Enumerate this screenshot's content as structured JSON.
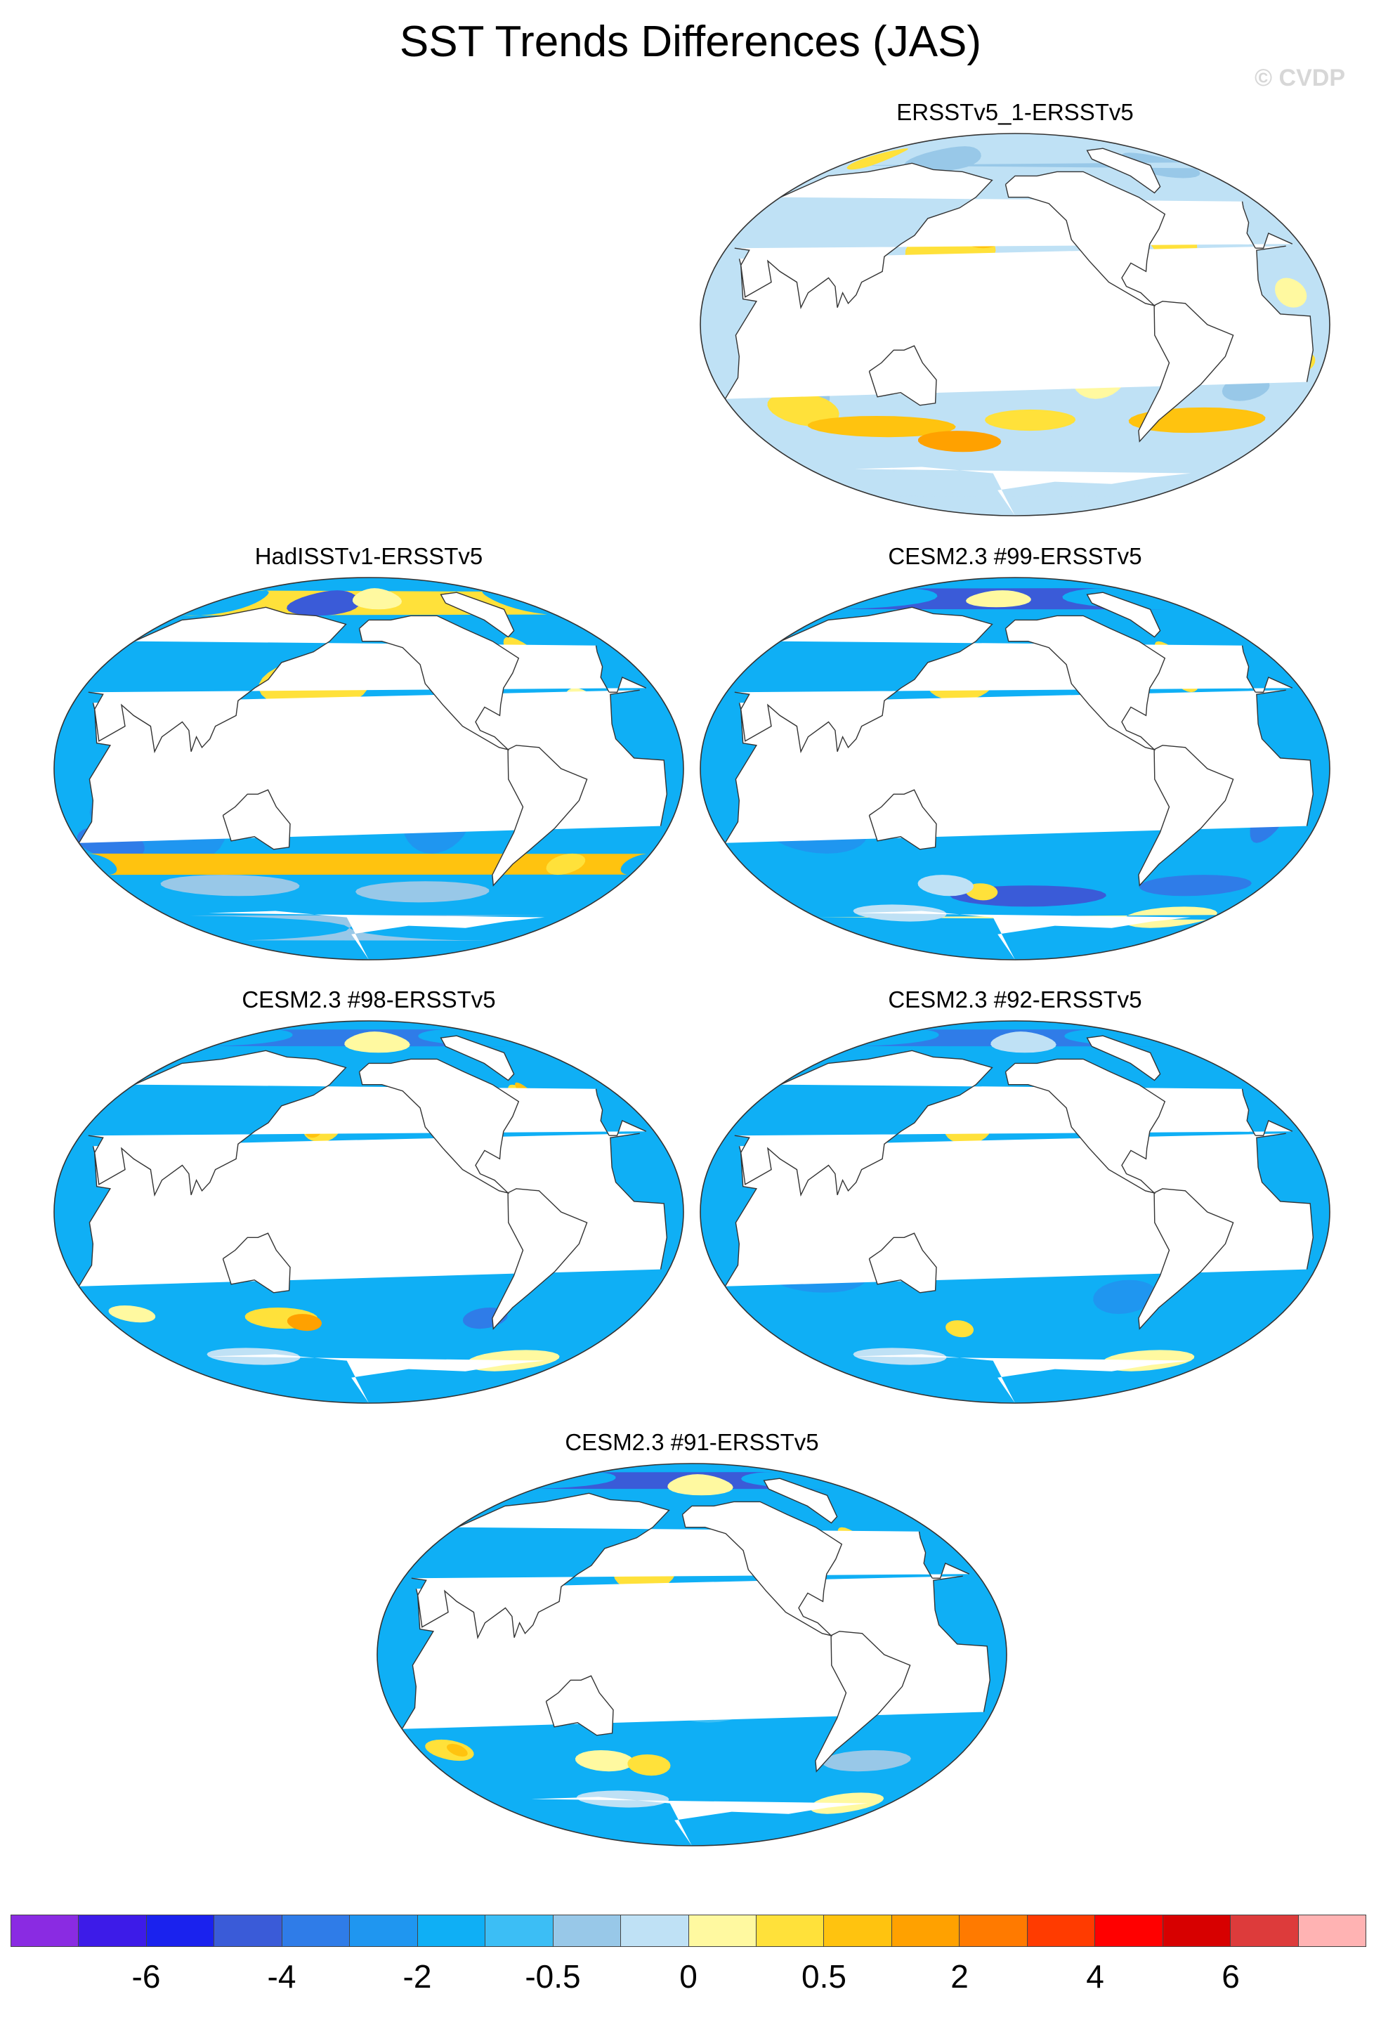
{
  "title": "SST Trends Differences (JAS)",
  "watermark": "© CVDP",
  "panels": [
    {
      "title": "ERSSTv5_1-ERSSTv5",
      "features": [
        {
          "lon": 0,
          "lat": 15,
          "rx": 9,
          "ry": 7,
          "c": 10
        },
        {
          "lon": 8,
          "lat": -18,
          "rx": 7,
          "ry": 5,
          "c": 11
        },
        {
          "lon": 72,
          "lat": -32,
          "rx": 14,
          "ry": 8,
          "c": 8
        },
        {
          "lon": 65,
          "lat": -40,
          "rx": 22,
          "ry": 8,
          "c": 11
        },
        {
          "lon": 100,
          "lat": 10,
          "rx": 15,
          "ry": 8,
          "c": 10
        },
        {
          "lon": 160,
          "lat": 35,
          "rx": 28,
          "ry": 12,
          "c": 11
        },
        {
          "lon": 180,
          "lat": 42,
          "rx": 14,
          "ry": 6,
          "c": 12
        },
        {
          "lon": -160,
          "lat": 20,
          "rx": 20,
          "ry": 10,
          "c": 10
        },
        {
          "lon": -150,
          "lat": -10,
          "rx": 12,
          "ry": 15,
          "c": 9
        },
        {
          "lon": -130,
          "lat": 5,
          "rx": 14,
          "ry": 6,
          "c": 8
        },
        {
          "lon": -110,
          "lat": -25,
          "rx": 16,
          "ry": 10,
          "c": 10
        },
        {
          "lon": -60,
          "lat": 40,
          "rx": 15,
          "ry": 10,
          "c": 11
        },
        {
          "lon": -30,
          "lat": 0,
          "rx": 12,
          "ry": 15,
          "c": 10
        },
        {
          "lon": -20,
          "lat": -30,
          "rx": 14,
          "ry": 6,
          "c": 8
        },
        {
          "lon": -40,
          "lat": -45,
          "rx": 45,
          "ry": 6,
          "c": 12
        },
        {
          "lon": 110,
          "lat": -48,
          "rx": 50,
          "ry": 5,
          "c": 12
        },
        {
          "lon": -150,
          "lat": -45,
          "rx": 30,
          "ry": 5,
          "c": 11
        },
        {
          "lon": 160,
          "lat": -55,
          "rx": 30,
          "ry": 5,
          "c": 13
        },
        {
          "lon": -10,
          "lat": 75,
          "rx": 30,
          "ry": 6,
          "c": 8
        },
        {
          "lon": 120,
          "lat": 78,
          "rx": 40,
          "ry": 6,
          "c": 8
        },
        {
          "lon": 40,
          "lat": 78,
          "rx": 15,
          "ry": 5,
          "c": 11
        },
        {
          "lon": 0,
          "lat": -75,
          "rx": 180,
          "ry": 6,
          "c": 9
        }
      ]
    },
    {
      "title": "HadISSTv1-ERSSTv5",
      "features": [
        {
          "lon": 75,
          "lat": -25,
          "rx": 40,
          "ry": 20,
          "c": 5
        },
        {
          "lon": 40,
          "lat": -35,
          "rx": 20,
          "ry": 8,
          "c": 4
        },
        {
          "lon": 165,
          "lat": 40,
          "rx": 35,
          "ry": 12,
          "c": 11
        },
        {
          "lon": 180,
          "lat": 45,
          "rx": 15,
          "ry": 6,
          "c": 12
        },
        {
          "lon": 150,
          "lat": -20,
          "rx": 14,
          "ry": 10,
          "c": 9
        },
        {
          "lon": 140,
          "lat": -30,
          "rx": 8,
          "ry": 6,
          "c": 10
        },
        {
          "lon": -150,
          "lat": 15,
          "rx": 30,
          "ry": 8,
          "c": 7
        },
        {
          "lon": -120,
          "lat": -25,
          "rx": 20,
          "ry": 15,
          "c": 5
        },
        {
          "lon": -50,
          "lat": 50,
          "rx": 12,
          "ry": 12,
          "c": 11
        },
        {
          "lon": -35,
          "lat": 45,
          "rx": 8,
          "ry": 6,
          "c": 12
        },
        {
          "lon": -30,
          "lat": 30,
          "rx": 10,
          "ry": 8,
          "c": 10
        },
        {
          "lon": -15,
          "lat": 0,
          "rx": 15,
          "ry": 10,
          "c": 6
        },
        {
          "lon": 20,
          "lat": -45,
          "rx": 12,
          "ry": 5,
          "c": 12
        },
        {
          "lon": -30,
          "lat": -45,
          "rx": 12,
          "ry": 5,
          "c": 11
        },
        {
          "lon": 100,
          "lat": -55,
          "rx": 50,
          "ry": 5,
          "c": 8
        },
        {
          "lon": -120,
          "lat": -58,
          "rx": 50,
          "ry": 5,
          "c": 8
        },
        {
          "lon": 30,
          "lat": 78,
          "rx": 40,
          "ry": 6,
          "c": 11
        },
        {
          "lon": 150,
          "lat": 78,
          "rx": 40,
          "ry": 6,
          "c": 3
        },
        {
          "lon": -150,
          "lat": 80,
          "rx": 30,
          "ry": 5,
          "c": 10
        },
        {
          "lon": 0,
          "lat": -75,
          "rx": 180,
          "ry": 6,
          "c": 8
        }
      ]
    },
    {
      "title": "CESM2.3 #99-ERSSTv5",
      "features": [
        {
          "lon": 165,
          "lat": 42,
          "rx": 22,
          "ry": 10,
          "c": 11
        },
        {
          "lon": 170,
          "lat": 45,
          "rx": 12,
          "ry": 5,
          "c": 13
        },
        {
          "lon": -50,
          "lat": 48,
          "rx": 10,
          "ry": 12,
          "c": 11
        },
        {
          "lon": -45,
          "lat": 52,
          "rx": 5,
          "ry": 6,
          "c": 12
        },
        {
          "lon": 80,
          "lat": -30,
          "rx": 30,
          "ry": 10,
          "c": 5
        },
        {
          "lon": -140,
          "lat": -15,
          "rx": 25,
          "ry": 12,
          "c": 5
        },
        {
          "lon": -10,
          "lat": -20,
          "rx": 10,
          "ry": 15,
          "c": 4
        },
        {
          "lon": -150,
          "lat": -60,
          "rx": 60,
          "ry": 5,
          "c": 3
        },
        {
          "lon": 175,
          "lat": -58,
          "rx": 12,
          "ry": 4,
          "c": 11
        },
        {
          "lon": 150,
          "lat": -55,
          "rx": 20,
          "ry": 5,
          "c": 9
        },
        {
          "lon": -30,
          "lat": -55,
          "rx": 40,
          "ry": 5,
          "c": 4
        },
        {
          "lon": 0,
          "lat": 80,
          "rx": 100,
          "ry": 5,
          "c": 3
        },
        {
          "lon": 180,
          "lat": 80,
          "rx": 40,
          "ry": 4,
          "c": 10
        },
        {
          "lon": -20,
          "lat": -70,
          "rx": 40,
          "ry": 5,
          "c": 10
        },
        {
          "lon": 100,
          "lat": -68,
          "rx": 40,
          "ry": 4,
          "c": 9
        }
      ]
    },
    {
      "title": "CESM2.3 #98-ERSSTv5",
      "features": [
        {
          "lon": 170,
          "lat": 40,
          "rx": 12,
          "ry": 7,
          "c": 11
        },
        {
          "lon": 165,
          "lat": 38,
          "rx": 5,
          "ry": 3,
          "c": 12
        },
        {
          "lon": -50,
          "lat": 50,
          "rx": 10,
          "ry": 10,
          "c": 11
        },
        {
          "lon": -45,
          "lat": 55,
          "rx": 5,
          "ry": 6,
          "c": 12
        },
        {
          "lon": 160,
          "lat": 25,
          "rx": 30,
          "ry": 8,
          "c": 8
        },
        {
          "lon": -150,
          "lat": -20,
          "rx": 30,
          "ry": 10,
          "c": 8
        },
        {
          "lon": 140,
          "lat": -50,
          "rx": 25,
          "ry": 5,
          "c": 11
        },
        {
          "lon": 155,
          "lat": -52,
          "rx": 12,
          "ry": 4,
          "c": 13
        },
        {
          "lon": 40,
          "lat": -48,
          "rx": 15,
          "ry": 4,
          "c": 10
        },
        {
          "lon": -80,
          "lat": -50,
          "rx": 15,
          "ry": 5,
          "c": 4
        },
        {
          "lon": 0,
          "lat": 82,
          "rx": 90,
          "ry": 4,
          "c": 4
        },
        {
          "lon": -150,
          "lat": 80,
          "rx": 40,
          "ry": 5,
          "c": 10
        },
        {
          "lon": -30,
          "lat": -70,
          "rx": 40,
          "ry": 5,
          "c": 10
        },
        {
          "lon": 100,
          "lat": -68,
          "rx": 40,
          "ry": 4,
          "c": 9
        }
      ]
    },
    {
      "title": "CESM2.3 #92-ERSSTv5",
      "features": [
        {
          "lon": 170,
          "lat": 40,
          "rx": 15,
          "ry": 8,
          "c": 11
        },
        {
          "lon": 175,
          "lat": 42,
          "rx": 6,
          "ry": 4,
          "c": 12
        },
        {
          "lon": -45,
          "lat": 50,
          "rx": 8,
          "ry": 6,
          "c": 9
        },
        {
          "lon": 80,
          "lat": -30,
          "rx": 30,
          "ry": 8,
          "c": 5
        },
        {
          "lon": -150,
          "lat": -20,
          "rx": 30,
          "ry": 10,
          "c": 5
        },
        {
          "lon": -90,
          "lat": -40,
          "rx": 20,
          "ry": 8,
          "c": 5
        },
        {
          "lon": 160,
          "lat": -55,
          "rx": 10,
          "ry": 4,
          "c": 11
        },
        {
          "lon": 0,
          "lat": 82,
          "rx": 90,
          "ry": 4,
          "c": 4
        },
        {
          "lon": -150,
          "lat": 80,
          "rx": 40,
          "ry": 5,
          "c": 9
        },
        {
          "lon": -40,
          "lat": -70,
          "rx": 40,
          "ry": 5,
          "c": 10
        },
        {
          "lon": 100,
          "lat": -68,
          "rx": 40,
          "ry": 4,
          "c": 9
        }
      ]
    },
    {
      "title": "CESM2.3 #91-ERSSTv5",
      "features": [
        {
          "lon": 170,
          "lat": 40,
          "rx": 20,
          "ry": 10,
          "c": 11
        },
        {
          "lon": 175,
          "lat": 42,
          "rx": 8,
          "ry": 4,
          "c": 12
        },
        {
          "lon": -45,
          "lat": 50,
          "rx": 10,
          "ry": 10,
          "c": 11
        },
        {
          "lon": -45,
          "lat": 52,
          "rx": 5,
          "ry": 6,
          "c": 13
        },
        {
          "lon": 160,
          "lat": 10,
          "rx": 40,
          "ry": 10,
          "c": 6
        },
        {
          "lon": -150,
          "lat": -20,
          "rx": 30,
          "ry": 12,
          "c": 7
        },
        {
          "lon": 40,
          "lat": -45,
          "rx": 15,
          "ry": 5,
          "c": 11
        },
        {
          "lon": 45,
          "lat": -45,
          "rx": 6,
          "ry": 3,
          "c": 12
        },
        {
          "lon": 140,
          "lat": -50,
          "rx": 20,
          "ry": 5,
          "c": 10
        },
        {
          "lon": 170,
          "lat": -52,
          "rx": 15,
          "ry": 5,
          "c": 11
        },
        {
          "lon": -40,
          "lat": -50,
          "rx": 30,
          "ry": 5,
          "c": 8
        },
        {
          "lon": 0,
          "lat": 82,
          "rx": 90,
          "ry": 4,
          "c": 3
        },
        {
          "lon": -150,
          "lat": 80,
          "rx": 40,
          "ry": 5,
          "c": 10
        },
        {
          "lon": -20,
          "lat": -70,
          "rx": 30,
          "ry": 5,
          "c": 10
        },
        {
          "lon": 140,
          "lat": -68,
          "rx": 40,
          "ry": 4,
          "c": 9
        }
      ]
    }
  ],
  "colorbar": {
    "colors": [
      "#8a2be2",
      "#3d1be8",
      "#1a22ee",
      "#3a5bd8",
      "#2f7ce8",
      "#1f96f0",
      "#0faff5",
      "#3cbef5",
      "#98c8e8",
      "#bfe1f5",
      "#fff9a0",
      "#ffe13a",
      "#ffc30f",
      "#ffa100",
      "#ff7a00",
      "#ff3b00",
      "#ff0000",
      "#d70000",
      "#dd3b3b",
      "#ffb3b3"
    ],
    "labels": [
      "-6",
      "-4",
      "-2",
      "-0.5",
      "0",
      "0.5",
      "2",
      "4",
      "6"
    ],
    "label_boundaries": [
      2,
      4,
      6,
      8,
      10,
      12,
      14,
      16,
      18
    ]
  }
}
